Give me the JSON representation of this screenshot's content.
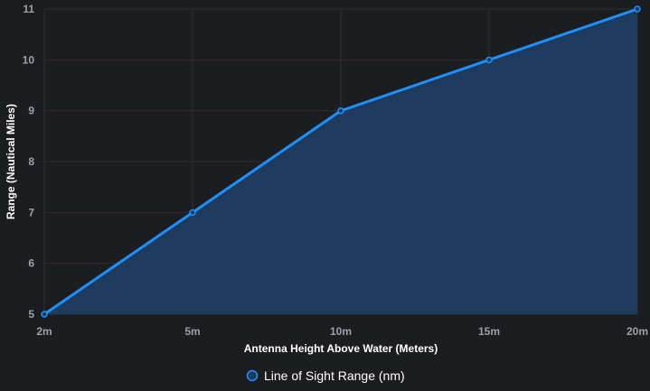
{
  "chart_data": {
    "type": "line",
    "fill": "area",
    "categories": [
      "2m",
      "5m",
      "10m",
      "15m",
      "20m"
    ],
    "series": [
      {
        "name": "Line of Sight Range (nm)",
        "values": [
          5,
          7,
          9,
          10,
          11
        ],
        "color": "#1e90ff",
        "fill_color": "#1e3a5c"
      }
    ],
    "title": "",
    "xlabel": "Antenna Height Above Water (Meters)",
    "ylabel": "Range (Nautical Miles)",
    "ylim": [
      5,
      11
    ],
    "yticks": [
      5,
      6,
      7,
      8,
      9,
      10,
      11
    ],
    "grid": true,
    "legend": "bottom-center"
  },
  "colors": {
    "background": "#1c1d21",
    "grid": "#2c2e33",
    "tick": "#9ca0a8",
    "text": "#ffffff"
  }
}
